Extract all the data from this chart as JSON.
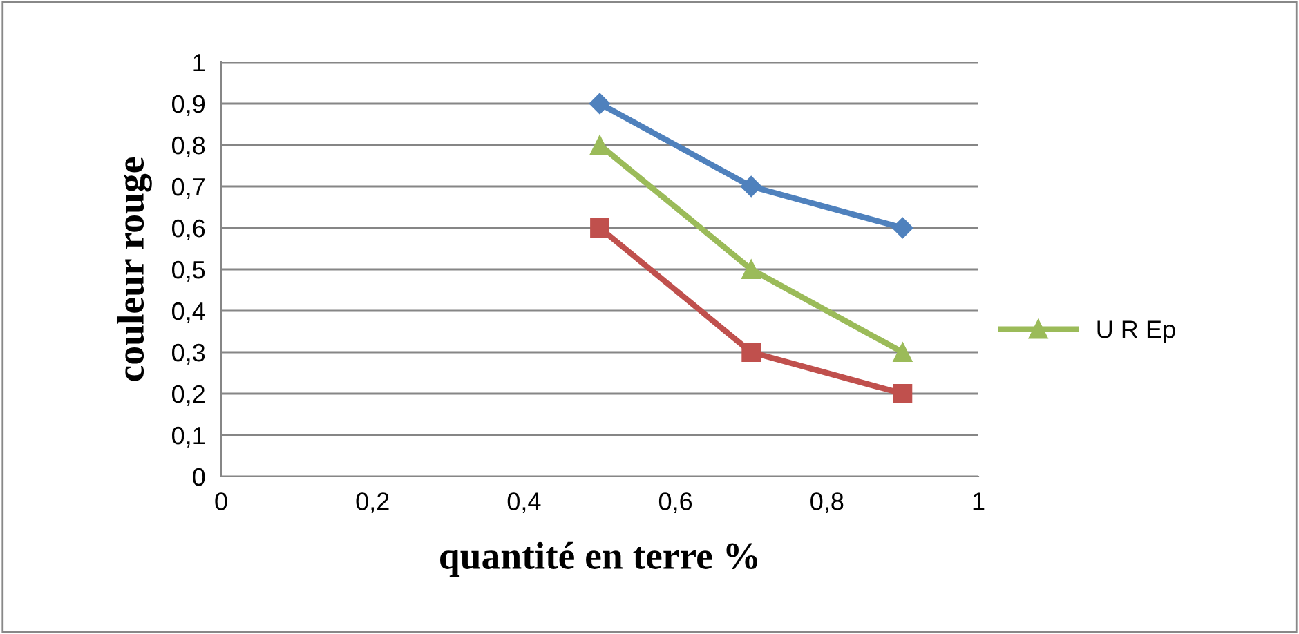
{
  "chart_data": {
    "type": "line",
    "xlabel": "quantité en terre %",
    "ylabel": "couleur rouge",
    "x": [
      0.5,
      0.7,
      0.9
    ],
    "series": [
      {
        "color": "#4f81bd",
        "marker": "diamond",
        "values": [
          0.9,
          0.7,
          0.6
        ]
      },
      {
        "color": "#c0504d",
        "marker": "square",
        "values": [
          0.6,
          0.3,
          0.2
        ]
      },
      {
        "name": "U R Ep",
        "color": "#9bbb59",
        "marker": "triangle",
        "values": [
          0.8,
          0.5,
          0.3
        ]
      }
    ],
    "xlim": [
      0,
      1
    ],
    "xticks": [
      0,
      {
        "value": 0.2,
        "label": "0,2"
      },
      {
        "value": 0.4,
        "label": "0,4"
      },
      {
        "value": 0.6,
        "label": "0,6"
      },
      {
        "value": 0.8,
        "label": "0,8"
      },
      1
    ],
    "ylim": [
      0,
      1
    ],
    "yticks": [
      0,
      {
        "value": 0.1,
        "label": "0,1"
      },
      {
        "value": 0.2,
        "label": "0,2"
      },
      {
        "value": 0.3,
        "label": "0,3"
      },
      {
        "value": 0.4,
        "label": "0,4"
      },
      {
        "value": 0.5,
        "label": "0,5"
      },
      {
        "value": 0.6,
        "label": "0,6"
      },
      {
        "value": 0.7,
        "label": "0,7"
      },
      {
        "value": 0.8,
        "label": "0,8"
      },
      {
        "value": 0.9,
        "label": "0,9"
      },
      1
    ],
    "grid": "y",
    "legend": "right",
    "line_style": "solid"
  }
}
